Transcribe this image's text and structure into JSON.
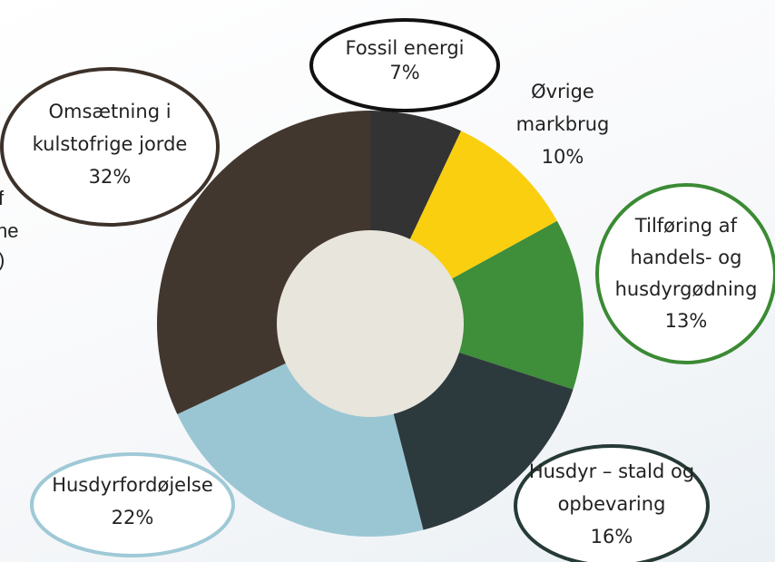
{
  "fragments": {
    "f": "f",
    "ne": "ne",
    "paren": ")"
  },
  "chart_data": {
    "type": "pie",
    "slices": [
      {
        "label": "Fossil energi",
        "value": 7,
        "display": "7%",
        "color": "#333333",
        "callout_border": "#111111"
      },
      {
        "label": "Øvrige markbrug",
        "value": 10,
        "display": "10%",
        "color": "#f9cf10",
        "callout_border": null
      },
      {
        "label": "Tilføring af handels- og husdyrgødning",
        "value": 13,
        "display": "13%",
        "color": "#3e8e3a",
        "callout_border": "#3b8a34"
      },
      {
        "label": "Husdyr – stald og opbevaring",
        "value": 16,
        "display": "16%",
        "color": "#2d3a3d",
        "callout_border": "#263a36"
      },
      {
        "label": "Husdyrfordøjelse",
        "value": 22,
        "display": "22%",
        "color": "#9ac6d4",
        "callout_border": "#9fc9d6"
      },
      {
        "label": "Omsætning i kulstofrige jorde",
        "value": 32,
        "display": "32%",
        "color": "#42372f",
        "callout_border": "#3d322a"
      }
    ],
    "center_color": "#e8e5dc"
  }
}
